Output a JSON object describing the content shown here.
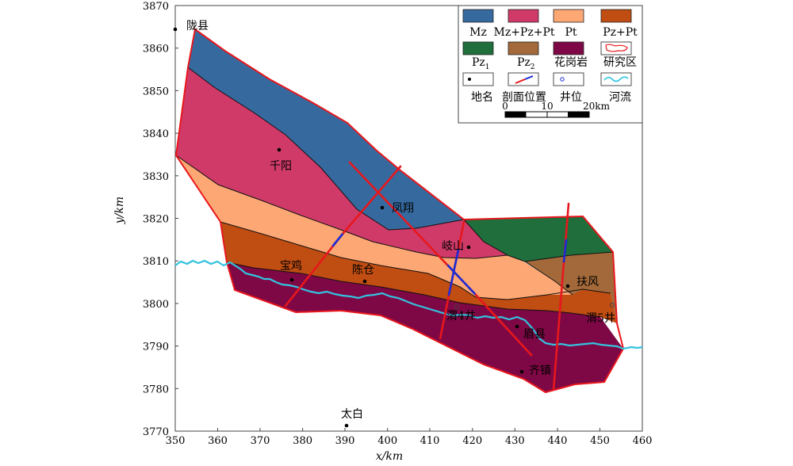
{
  "axes": {
    "x_title": "x/km",
    "y_title": "y/km",
    "x_ticks": [
      "350",
      "360",
      "370",
      "380",
      "390",
      "400",
      "410",
      "420",
      "430",
      "440",
      "450",
      "460"
    ],
    "y_ticks": [
      "3870",
      "3860",
      "3850",
      "3840",
      "3830",
      "3820",
      "3810",
      "3800",
      "3790",
      "3780",
      "3770"
    ]
  },
  "places": [
    {
      "name": "陇县"
    },
    {
      "name": "千阳"
    },
    {
      "name": "凤翔"
    },
    {
      "name": "岐山"
    },
    {
      "name": "宝鸡"
    },
    {
      "name": "陈仓"
    },
    {
      "name": "扶风"
    },
    {
      "name": "渭4井"
    },
    {
      "name": "渭5井"
    },
    {
      "name": "眉县"
    },
    {
      "name": "齐镇"
    },
    {
      "name": "太白"
    }
  ],
  "legend": {
    "items": [
      {
        "label": "Mz",
        "color": "#366a9f"
      },
      {
        "label": "Mz+Pz+Pt",
        "color": "#cf3a69"
      },
      {
        "label": "Pt",
        "color": "#fda774"
      },
      {
        "label": "Pz+Pt",
        "color": "#c04d12"
      },
      {
        "label": "Pz",
        "sub": "1",
        "color": "#1f6e3c"
      },
      {
        "label": "Pz",
        "sub": "2",
        "color": "#a3693a"
      },
      {
        "label": "花岗岩",
        "color": "#7e0845"
      },
      {
        "label": "研究区",
        "icon": "study-area-outline-icon"
      },
      {
        "label": "地名",
        "icon": "place-dot-icon"
      },
      {
        "label": "剖面位置",
        "icon": "profile-line-icon"
      },
      {
        "label": "井位",
        "icon": "well-circle-icon"
      },
      {
        "label": "河流",
        "icon": "river-wave-icon"
      }
    ],
    "scale": {
      "labels": [
        "0",
        "10",
        "20km"
      ]
    }
  },
  "colors": {
    "mz": "#366a9f",
    "mz_pz_pt": "#cf3a69",
    "pt": "#fda774",
    "pz_pt": "#c04d12",
    "pz1": "#1f6e3c",
    "pz2": "#a3693a",
    "granite": "#7e0845",
    "boundary": "#e8171c",
    "profile_red": "#e8171c",
    "profile_blue": "#1a2bd6",
    "river": "#33c3e0"
  }
}
